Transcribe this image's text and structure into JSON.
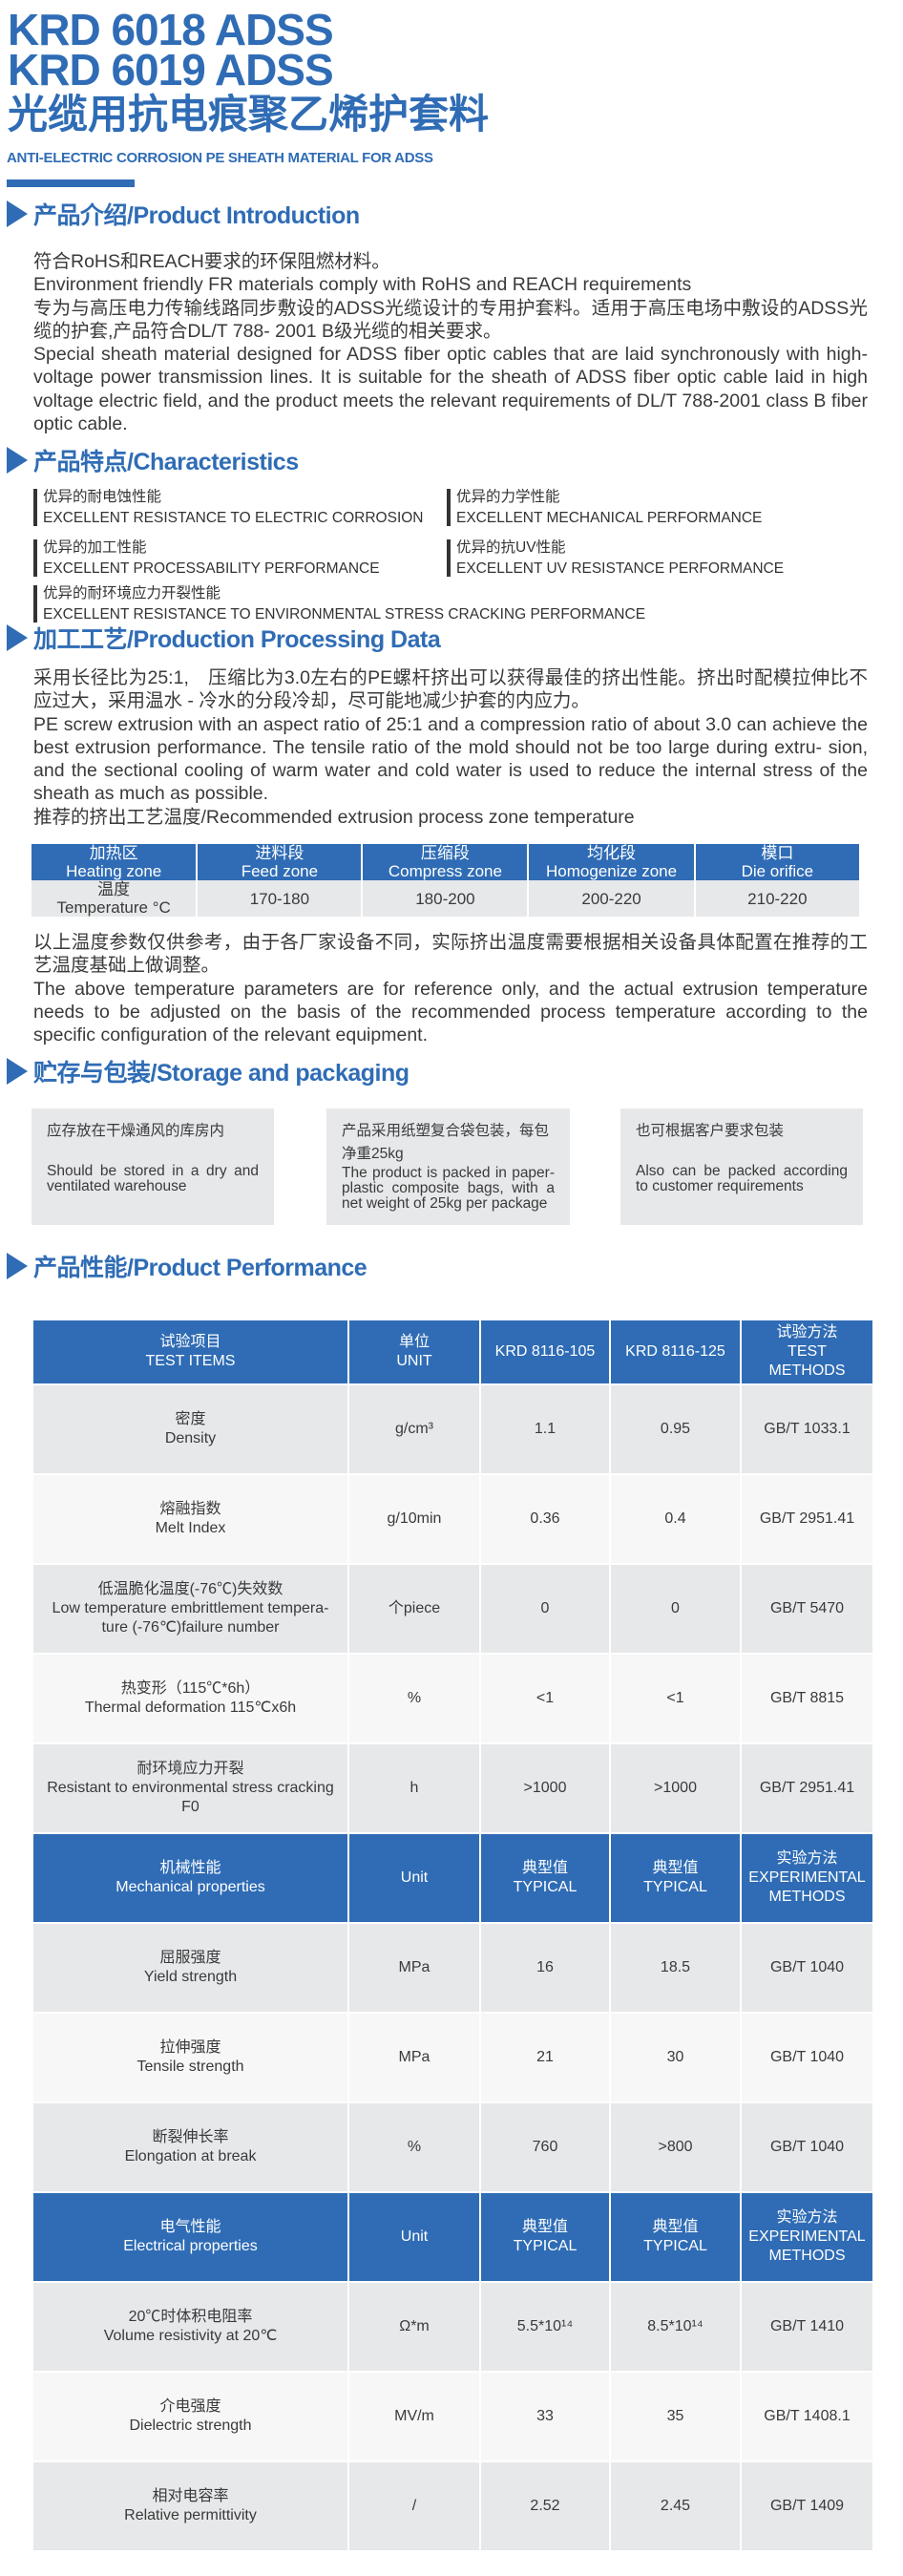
{
  "header": {
    "title_line1": "KRD 6018 ADSS",
    "title_line2": "KRD 6019 ADSS",
    "title_cn": "光缆用抗电痕聚乙烯护套料",
    "subtitle": "ANTI-ELECTRIC CORROSION PE SHEATH MATERIAL FOR ADSS"
  },
  "colors": {
    "brand": "#2f6cb5",
    "row_gray": "#e7e8ea",
    "row_light": "#f7f7f8",
    "text": "#3a3a3a"
  },
  "intro": {
    "heading": "产品介绍/Product Introduction",
    "paragraphs": [
      "符合RoHS和REACH要求的环保阻燃材料。",
      "Environment friendly FR materials comply with RoHS and REACH requirements",
      "专为与高压电力传输线路同步敷设的ADSS光缆设计的专用护套料。适用于高压电场中敷设的ADSS光缆的护套,产品符合DL/T 788- 2001 B级光缆的相关要求。",
      "Special sheath material designed for ADSS fiber optic cables that are laid synchronously with high-voltage power transmission lines. It is suitable for the sheath of ADSS fiber optic cable laid in high voltage electric field, and the product meets the relevant requirements of DL/T 788-2001 class B fiber optic cable."
    ]
  },
  "characteristics": {
    "heading": "产品特点/Characteristics",
    "items": [
      {
        "cn": "优异的耐电蚀性能",
        "en": "EXCELLENT RESISTANCE TO ELECTRIC CORROSION"
      },
      {
        "cn": "优异的力学性能",
        "en": "EXCELLENT MECHANICAL PERFORMANCE"
      },
      {
        "cn": "优异的加工性能",
        "en": "EXCELLENT PROCESSABILITY PERFORMANCE"
      },
      {
        "cn": "优异的抗UV性能",
        "en": "EXCELLENT UV RESISTANCE PERFORMANCE"
      },
      {
        "cn": "优异的耐环境应力开裂性能",
        "en": "EXCELLENT RESISTANCE TO ENVIRONMENTAL STRESS CRACKING PERFORMANCE"
      }
    ]
  },
  "processing": {
    "heading": "加工工艺/Production Processing Data",
    "paragraphs": [
      "采用长径比为25:1,　压缩比为3.0左右的PE螺杆挤出可以获得最佳的挤出性能。挤出时配模拉伸比不应过大，采用温水 - 冷水的分段冷却，尽可能地减少护套的内应力。",
      "PE screw extrusion with an aspect ratio of 25:1 and a compression ratio of about 3.0 can achieve the best extrusion performance. The tensile ratio of the mold should not be too large during extru- sion, and the sectional cooling of warm water and cold water is used to reduce the internal stress of the sheath as much as possible.",
      "推荐的挤出工艺温度/Recommended extrusion process zone temperature"
    ],
    "table": {
      "header": [
        {
          "cn": "加热区",
          "en": "Heating zone"
        },
        {
          "cn": "进料段",
          "en": "Feed zone"
        },
        {
          "cn": "压缩段",
          "en": "Compress zone"
        },
        {
          "cn": "均化段",
          "en": "Homogenize zone"
        },
        {
          "cn": "模口",
          "en": "Die orifice"
        }
      ],
      "row_label": {
        "cn": "温度",
        "en": "Temperature °C"
      },
      "values": [
        "170-180",
        "180-200",
        "200-220",
        "210-220"
      ]
    },
    "note": [
      "以上温度参数仅供参考，由于各厂家设备不同，实际挤出温度需要根据相关设备具体配置在推荐的工艺温度基础上做调整。",
      "The above temperature parameters are for reference only, and the actual extrusion temperature needs to be adjusted on the basis of the recommended process temperature according to the specific configuration of the relevant equipment."
    ]
  },
  "storage": {
    "heading": "贮存与包装/Storage and packaging",
    "boxes": [
      {
        "cn": "应存放在干燥通风的库房内",
        "en": "Should be stored in a dry and ventilated warehouse"
      },
      {
        "cn": "产品采用纸塑复合袋包装，每包净重25kg",
        "en": "The product is packed in paper-plastic composite bags, with a net weight of 25kg per package"
      },
      {
        "cn": "也可根据客户要求包装",
        "en": "Also can be packed according to customer requirements"
      }
    ]
  },
  "performance": {
    "heading": "产品性能/Product Performance",
    "rows": [
      {
        "type": "header",
        "cells": [
          "试验项目\nTEST ITEMS",
          "单位\nUNIT",
          "KRD 8116-105",
          "KRD 8116-125",
          "试验方法\nTEST METHODS"
        ]
      },
      {
        "type": "data",
        "cells": [
          "密度\nDensity",
          "g/cm³",
          "1.1",
          "0.95",
          "GB/T 1033.1"
        ]
      },
      {
        "type": "data",
        "cells": [
          "熔融指数\nMelt Index",
          "g/10min",
          "0.36",
          "0.4",
          "GB/T 2951.41"
        ]
      },
      {
        "type": "data",
        "cells": [
          "低温脆化温度(-76℃)失效数\nLow temperature embrittlement tempera- ture (-76℃)failure number",
          "个piece",
          "0",
          "0",
          "GB/T 5470"
        ]
      },
      {
        "type": "data",
        "cells": [
          "热变形（115℃*6h）\nThermal deformation 115℃x6h",
          "%",
          "<1",
          "<1",
          "GB/T 8815"
        ]
      },
      {
        "type": "data",
        "cells": [
          "耐环境应力开裂\nResistant to environmental stress cracking F0",
          "h",
          ">1000",
          ">1000",
          "GB/T 2951.41"
        ]
      },
      {
        "type": "header",
        "cells": [
          "机械性能\nMechanical properties",
          "Unit",
          "典型值\nTYPICAL",
          "典型值\nTYPICAL",
          "实验方法\nEXPERIMENTAL METHODS"
        ]
      },
      {
        "type": "data",
        "cells": [
          "屈服强度\nYield strength",
          "MPa",
          "16",
          "18.5",
          "GB/T 1040"
        ]
      },
      {
        "type": "data",
        "cells": [
          "拉伸强度\nTensile strength",
          "MPa",
          "21",
          "30",
          "GB/T 1040"
        ]
      },
      {
        "type": "data",
        "cells": [
          "断裂伸长率\nElongation at break",
          "%",
          "760",
          ">800",
          "GB/T 1040"
        ]
      },
      {
        "type": "header",
        "cells": [
          "电气性能\nElectrical properties",
          "Unit",
          "典型值\nTYPICAL",
          "典型值\nTYPICAL",
          "实验方法\nEXPERIMENTAL METHODS"
        ]
      },
      {
        "type": "data",
        "cells": [
          "20℃时体积电阻率\nVolume resistivity at 20℃",
          "Ω*m",
          "5.5*10¹⁴",
          "8.5*10¹⁴",
          "GB/T 1410"
        ]
      },
      {
        "type": "data",
        "cells": [
          "介电强度\nDielectric strength",
          "MV/m",
          "33",
          "35",
          "GB/T 1408.1"
        ]
      },
      {
        "type": "data",
        "cells": [
          "相对电容率\nRelative permittivity",
          "/",
          "2.52",
          "2.45",
          "GB/T 1409"
        ]
      }
    ]
  }
}
